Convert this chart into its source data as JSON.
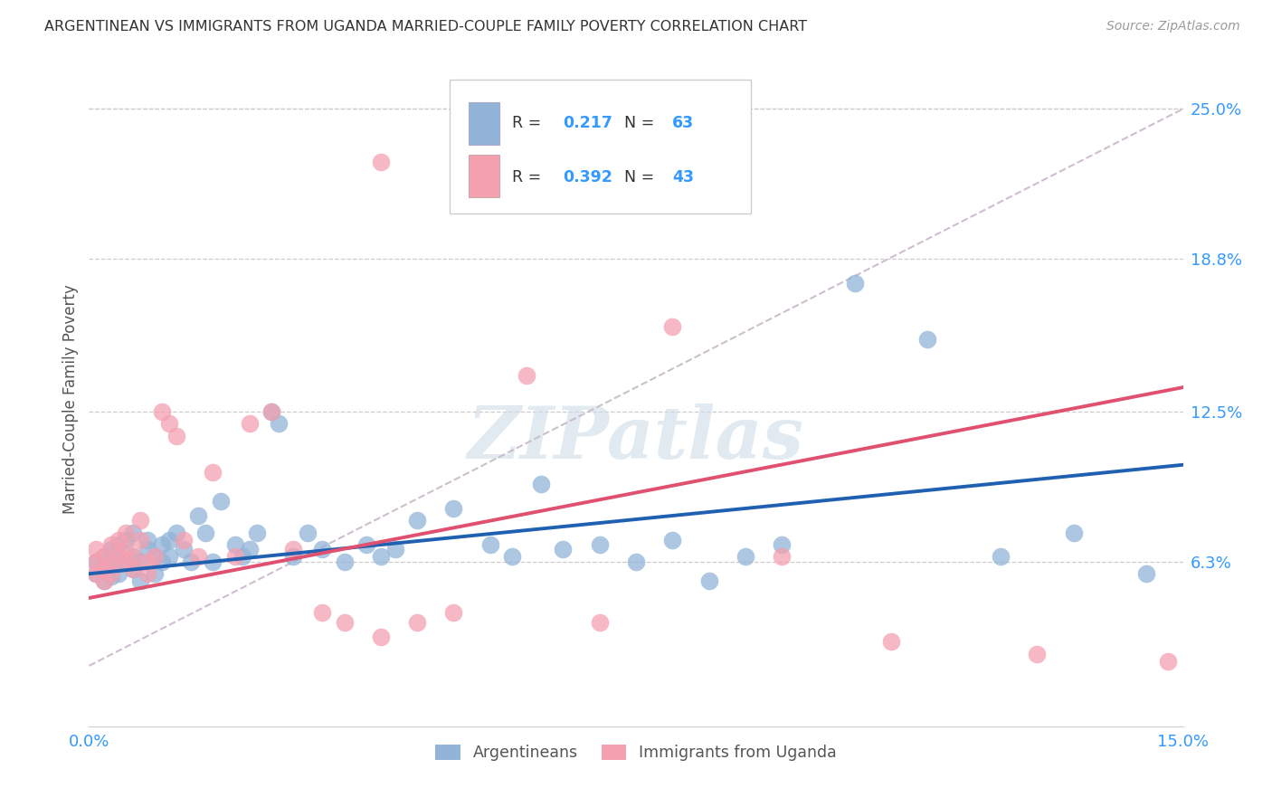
{
  "title": "ARGENTINEAN VS IMMIGRANTS FROM UGANDA MARRIED-COUPLE FAMILY POVERTY CORRELATION CHART",
  "source": "Source: ZipAtlas.com",
  "ylabel": "Married-Couple Family Poverty",
  "xlim": [
    0.0,
    0.15
  ],
  "ylim": [
    -0.005,
    0.265
  ],
  "ytick_labels_right": [
    "6.3%",
    "12.5%",
    "18.8%",
    "25.0%"
  ],
  "yticks_right": [
    0.063,
    0.125,
    0.188,
    0.25
  ],
  "grid_lines": [
    0.063,
    0.125,
    0.188,
    0.25
  ],
  "blue_color": "#92B4D8",
  "pink_color": "#F4A0B0",
  "blue_line_color": "#2060B0",
  "pink_line_color": "#E05070",
  "dashed_line_color": "#C8B8C8",
  "legend_R1": "0.217",
  "legend_N1": "63",
  "legend_R2": "0.392",
  "legend_N2": "43",
  "blue_label": "Argentineans",
  "pink_label": "Immigrants from Uganda",
  "watermark": "ZIPatlas",
  "blue_line_x0": 0.0,
  "blue_line_y0": 0.058,
  "blue_line_x1": 0.15,
  "blue_line_y1": 0.103,
  "pink_line_x0": 0.0,
  "pink_line_y0": 0.048,
  "pink_line_x1": 0.15,
  "pink_line_y1": 0.135,
  "blue_x": [
    0.001,
    0.001,
    0.002,
    0.002,
    0.002,
    0.003,
    0.003,
    0.003,
    0.004,
    0.004,
    0.004,
    0.005,
    0.005,
    0.006,
    0.006,
    0.006,
    0.007,
    0.007,
    0.008,
    0.008,
    0.009,
    0.009,
    0.01,
    0.01,
    0.011,
    0.011,
    0.012,
    0.013,
    0.014,
    0.015,
    0.016,
    0.017,
    0.018,
    0.02,
    0.021,
    0.022,
    0.023,
    0.025,
    0.026,
    0.028,
    0.03,
    0.032,
    0.035,
    0.038,
    0.04,
    0.042,
    0.045,
    0.05,
    0.055,
    0.058,
    0.062,
    0.065,
    0.07,
    0.075,
    0.08,
    0.085,
    0.09,
    0.095,
    0.105,
    0.115,
    0.125,
    0.135,
    0.145
  ],
  "blue_y": [
    0.063,
    0.058,
    0.065,
    0.06,
    0.055,
    0.063,
    0.068,
    0.057,
    0.065,
    0.07,
    0.058,
    0.063,
    0.072,
    0.06,
    0.065,
    0.075,
    0.063,
    0.055,
    0.068,
    0.072,
    0.065,
    0.058,
    0.07,
    0.063,
    0.065,
    0.072,
    0.075,
    0.068,
    0.063,
    0.082,
    0.075,
    0.063,
    0.088,
    0.07,
    0.065,
    0.068,
    0.075,
    0.125,
    0.12,
    0.065,
    0.075,
    0.068,
    0.063,
    0.07,
    0.065,
    0.068,
    0.08,
    0.085,
    0.07,
    0.065,
    0.095,
    0.068,
    0.07,
    0.063,
    0.072,
    0.055,
    0.065,
    0.07,
    0.178,
    0.155,
    0.065,
    0.075,
    0.058
  ],
  "pink_x": [
    0.001,
    0.001,
    0.001,
    0.002,
    0.002,
    0.002,
    0.003,
    0.003,
    0.003,
    0.004,
    0.004,
    0.005,
    0.005,
    0.005,
    0.006,
    0.006,
    0.007,
    0.007,
    0.008,
    0.008,
    0.009,
    0.01,
    0.011,
    0.012,
    0.013,
    0.015,
    0.017,
    0.02,
    0.022,
    0.025,
    0.028,
    0.032,
    0.035,
    0.04,
    0.045,
    0.05,
    0.06,
    0.07,
    0.08,
    0.095,
    0.11,
    0.13,
    0.148
  ],
  "pink_y": [
    0.063,
    0.058,
    0.068,
    0.065,
    0.06,
    0.055,
    0.07,
    0.063,
    0.058,
    0.065,
    0.072,
    0.063,
    0.068,
    0.075,
    0.06,
    0.065,
    0.08,
    0.072,
    0.063,
    0.058,
    0.065,
    0.125,
    0.12,
    0.115,
    0.072,
    0.065,
    0.1,
    0.065,
    0.12,
    0.125,
    0.068,
    0.042,
    0.038,
    0.032,
    0.038,
    0.042,
    0.14,
    0.038,
    0.16,
    0.065,
    0.03,
    0.025,
    0.022
  ]
}
